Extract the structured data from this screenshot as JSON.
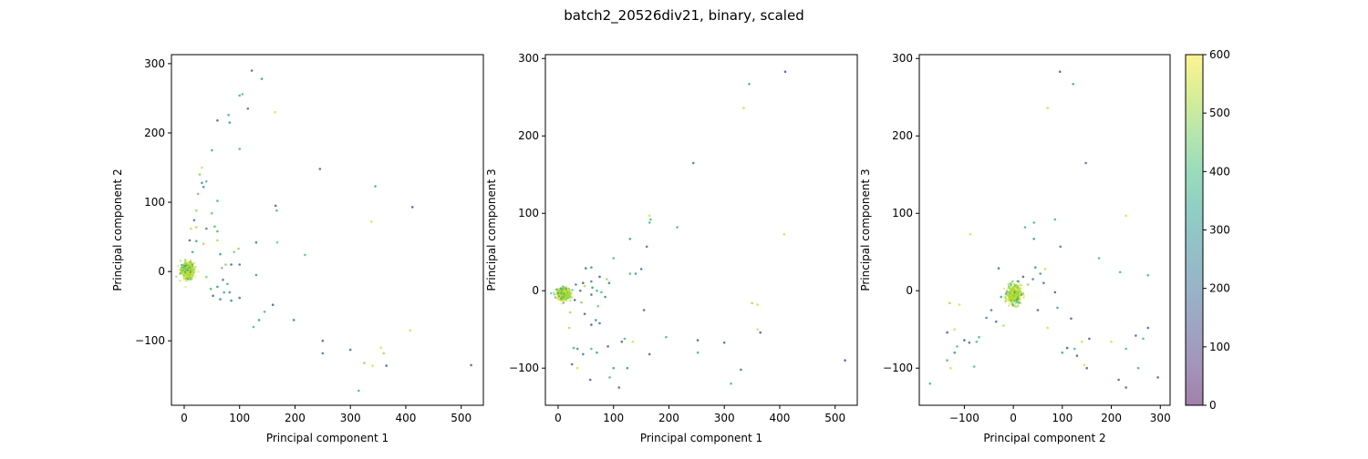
{
  "figure": {
    "title": "batch2_20526div21, binary, scaled"
  },
  "colorbar": {
    "range": [
      0,
      600
    ],
    "ticks": [
      "0",
      "100",
      "200",
      "300",
      "400",
      "500",
      "600"
    ],
    "colormap": "viridis",
    "alpha": 0.5
  },
  "chart_data": [
    {
      "type": "scatter",
      "xlabel": "Principal component 1",
      "ylabel": "Principal component 2",
      "xlim": [
        -23,
        540
      ],
      "ylim": [
        -193,
        313
      ],
      "xticks": [
        0,
        100,
        200,
        300,
        400,
        500
      ],
      "yticks": [
        -100,
        0,
        100,
        200,
        300
      ],
      "cluster": {
        "center": [
          6,
          2
        ],
        "spread": [
          6,
          6
        ],
        "count": 380
      },
      "points": [
        [
          122,
          290,
          150
        ],
        [
          140,
          278,
          330
        ],
        [
          100,
          254,
          380
        ],
        [
          105,
          256,
          420
        ],
        [
          115,
          235,
          200
        ],
        [
          164,
          230,
          560
        ],
        [
          60,
          218,
          150
        ],
        [
          80,
          226,
          390
        ],
        [
          82,
          215,
          320
        ],
        [
          50,
          175,
          350
        ],
        [
          100,
          177,
          400
        ],
        [
          245,
          148,
          150
        ],
        [
          32,
          150,
          560
        ],
        [
          28,
          140,
          480
        ],
        [
          40,
          130,
          420
        ],
        [
          32,
          128,
          300
        ],
        [
          35,
          122,
          260
        ],
        [
          345,
          123,
          360
        ],
        [
          25,
          112,
          450
        ],
        [
          60,
          102,
          380
        ],
        [
          412,
          93,
          120
        ],
        [
          165,
          95,
          150
        ],
        [
          167,
          88,
          400
        ],
        [
          22,
          88,
          500
        ],
        [
          50,
          84,
          430
        ],
        [
          338,
          72,
          560
        ],
        [
          18,
          74,
          200
        ],
        [
          22,
          64,
          520
        ],
        [
          12,
          62,
          550
        ],
        [
          40,
          62,
          250
        ],
        [
          55,
          65,
          420
        ],
        [
          60,
          58,
          380
        ],
        [
          130,
          42,
          250
        ],
        [
          168,
          42,
          450
        ],
        [
          10,
          45,
          150
        ],
        [
          22,
          44,
          350
        ],
        [
          35,
          40,
          520
        ],
        [
          60,
          45,
          520
        ],
        [
          98,
          33,
          500
        ],
        [
          90,
          28,
          470
        ],
        [
          218,
          24,
          420
        ],
        [
          65,
          25,
          300
        ],
        [
          15,
          28,
          350
        ],
        [
          75,
          10,
          480
        ],
        [
          85,
          10,
          150
        ],
        [
          100,
          10,
          200
        ],
        [
          68,
          5,
          450
        ],
        [
          130,
          -5,
          300
        ],
        [
          40,
          -8,
          480
        ],
        [
          70,
          -12,
          200
        ],
        [
          78,
          -18,
          380
        ],
        [
          60,
          -22,
          280
        ],
        [
          48,
          -25,
          400
        ],
        [
          72,
          -30,
          350
        ],
        [
          100,
          -38,
          200
        ],
        [
          52,
          -35,
          150
        ],
        [
          65,
          -40,
          250
        ],
        [
          85,
          -42,
          250
        ],
        [
          82,
          -30,
          300
        ],
        [
          160,
          -48,
          150
        ],
        [
          145,
          -58,
          400
        ],
        [
          125,
          -80,
          400
        ],
        [
          135,
          -70,
          300
        ],
        [
          198,
          -70,
          200
        ],
        [
          250,
          -100,
          150
        ],
        [
          250,
          -118,
          200
        ],
        [
          300,
          -113,
          200
        ],
        [
          355,
          -110,
          560
        ],
        [
          360,
          -118,
          520
        ],
        [
          325,
          -132,
          500
        ],
        [
          340,
          -136,
          560
        ],
        [
          365,
          -136,
          150
        ],
        [
          408,
          -85,
          560
        ],
        [
          315,
          -172,
          400
        ],
        [
          518,
          -135,
          150
        ]
      ]
    },
    {
      "type": "scatter",
      "xlabel": "Principal component 1",
      "ylabel": "Principal component 3",
      "xlim": [
        -23,
        540
      ],
      "ylim": [
        -148,
        305
      ],
      "xticks": [
        0,
        100,
        200,
        300,
        400,
        500
      ],
      "yticks": [
        -100,
        0,
        100,
        200,
        300
      ],
      "cluster": {
        "center": [
          10,
          -4
        ],
        "spread": [
          6,
          4
        ],
        "count": 380
      },
      "points": [
        [
          410,
          283,
          150
        ],
        [
          345,
          267,
          330
        ],
        [
          335,
          236,
          560
        ],
        [
          244,
          165,
          200
        ],
        [
          165,
          97,
          560
        ],
        [
          167,
          92,
          400
        ],
        [
          165,
          88,
          400
        ],
        [
          215,
          82,
          380
        ],
        [
          408,
          73,
          560
        ],
        [
          130,
          67,
          300
        ],
        [
          160,
          57,
          200
        ],
        [
          100,
          42,
          400
        ],
        [
          50,
          29,
          200
        ],
        [
          60,
          30,
          300
        ],
        [
          150,
          28,
          200
        ],
        [
          130,
          22,
          400
        ],
        [
          140,
          22,
          300
        ],
        [
          75,
          18,
          150
        ],
        [
          88,
          15,
          500
        ],
        [
          60,
          12,
          250
        ],
        [
          45,
          10,
          150
        ],
        [
          92,
          10,
          250
        ],
        [
          32,
          8,
          250
        ],
        [
          48,
          6,
          520
        ],
        [
          62,
          4,
          300
        ],
        [
          40,
          0,
          200
        ],
        [
          70,
          0,
          380
        ],
        [
          78,
          -2,
          400
        ],
        [
          60,
          -5,
          150
        ],
        [
          85,
          -8,
          250
        ],
        [
          30,
          -12,
          150
        ],
        [
          42,
          -15,
          480
        ],
        [
          72,
          -20,
          450
        ],
        [
          155,
          -25,
          150
        ],
        [
          22,
          -28,
          520
        ],
        [
          48,
          -30,
          200
        ],
        [
          68,
          -38,
          250
        ],
        [
          75,
          -42,
          200
        ],
        [
          60,
          -44,
          150
        ],
        [
          20,
          -48,
          520
        ],
        [
          350,
          -16,
          520
        ],
        [
          360,
          -18,
          560
        ],
        [
          360,
          -50,
          560
        ],
        [
          365,
          -54,
          150
        ],
        [
          252,
          -64,
          150
        ],
        [
          195,
          -60,
          400
        ],
        [
          120,
          -62,
          400
        ],
        [
          115,
          -66,
          150
        ],
        [
          135,
          -66,
          560
        ],
        [
          300,
          -67,
          200
        ],
        [
          28,
          -74,
          400
        ],
        [
          35,
          -75,
          300
        ],
        [
          60,
          -75,
          400
        ],
        [
          90,
          -72,
          150
        ],
        [
          70,
          -80,
          350
        ],
        [
          252,
          -80,
          400
        ],
        [
          25,
          -95,
          150
        ],
        [
          35,
          -100,
          560
        ],
        [
          45,
          -82,
          200
        ],
        [
          58,
          -115,
          150
        ],
        [
          100,
          -100,
          350
        ],
        [
          125,
          -100,
          300
        ],
        [
          93,
          -112,
          400
        ],
        [
          110,
          -125,
          150
        ],
        [
          330,
          -102,
          200
        ],
        [
          312,
          -120,
          400
        ],
        [
          518,
          -90,
          150
        ],
        [
          165,
          -82,
          150
        ]
      ]
    },
    {
      "type": "scatter",
      "xlabel": "Principal component 2",
      "ylabel": "Principal component 3",
      "xlim": [
        -192,
        320
      ],
      "ylim": [
        -148,
        305
      ],
      "xticks": [
        -100,
        0,
        100,
        200,
        300
      ],
      "yticks": [
        -100,
        0,
        100,
        200,
        300
      ],
      "cluster": {
        "center": [
          2,
          -5
        ],
        "spread": [
          7,
          6
        ],
        "count": 380
      },
      "points": [
        [
          95,
          283,
          150
        ],
        [
          122,
          267,
          330
        ],
        [
          70,
          236,
          560
        ],
        [
          148,
          165,
          200
        ],
        [
          230,
          97,
          560
        ],
        [
          85,
          92,
          400
        ],
        [
          42,
          88,
          400
        ],
        [
          24,
          82,
          380
        ],
        [
          -88,
          73,
          560
        ],
        [
          42,
          67,
          300
        ],
        [
          96,
          57,
          200
        ],
        [
          175,
          42,
          400
        ],
        [
          218,
          24,
          400
        ],
        [
          -30,
          29,
          200
        ],
        [
          45,
          30,
          300
        ],
        [
          65,
          28,
          560
        ],
        [
          55,
          22,
          300
        ],
        [
          275,
          20,
          400
        ],
        [
          20,
          18,
          150
        ],
        [
          40,
          15,
          250
        ],
        [
          10,
          12,
          250
        ],
        [
          62,
          10,
          200
        ],
        [
          30,
          8,
          500
        ],
        [
          85,
          -2,
          150
        ],
        [
          -45,
          -25,
          200
        ],
        [
          -55,
          -35,
          250
        ],
        [
          -35,
          -40,
          200
        ],
        [
          -20,
          -45,
          520
        ],
        [
          -130,
          -16,
          520
        ],
        [
          -110,
          -18,
          560
        ],
        [
          -120,
          -50,
          560
        ],
        [
          -135,
          -54,
          150
        ],
        [
          -100,
          -64,
          150
        ],
        [
          -70,
          -60,
          400
        ],
        [
          -75,
          -66,
          400
        ],
        [
          -90,
          -67,
          200
        ],
        [
          155,
          -62,
          150
        ],
        [
          118,
          -36,
          150
        ],
        [
          140,
          -66,
          560
        ],
        [
          -115,
          -72,
          400
        ],
        [
          -120,
          -80,
          300
        ],
        [
          -135,
          -90,
          400
        ],
        [
          -128,
          -100,
          560
        ],
        [
          -80,
          -98,
          400
        ],
        [
          -170,
          -120,
          400
        ],
        [
          250,
          -58,
          150
        ],
        [
          265,
          -62,
          400
        ],
        [
          275,
          -48,
          150
        ],
        [
          230,
          -75,
          400
        ],
        [
          200,
          -66,
          560
        ],
        [
          110,
          -74,
          150
        ],
        [
          125,
          -75,
          400
        ],
        [
          100,
          -80,
          350
        ],
        [
          130,
          -84,
          150
        ],
        [
          150,
          -100,
          150
        ],
        [
          145,
          -96,
          560
        ],
        [
          215,
          -115,
          150
        ],
        [
          230,
          -125,
          150
        ],
        [
          255,
          -100,
          400
        ],
        [
          295,
          -112,
          150
        ],
        [
          90,
          -22,
          350
        ],
        [
          70,
          -48,
          560
        ],
        [
          50,
          -25,
          150
        ],
        [
          -25,
          -8,
          350
        ]
      ]
    }
  ]
}
